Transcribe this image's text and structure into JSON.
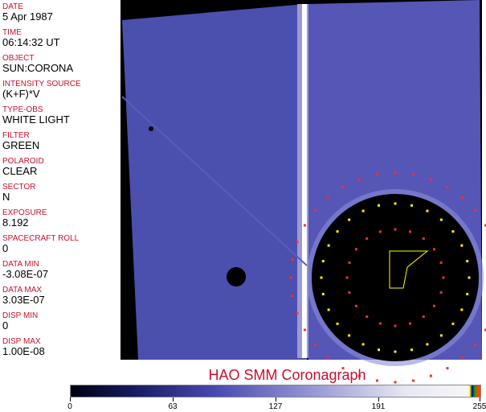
{
  "fields": [
    {
      "label": "DATE",
      "value": "5 Apr 1987"
    },
    {
      "label": "TIME",
      "value": "06:14:32 UT"
    },
    {
      "label": "OBJECT",
      "value": "SUN:CORONA"
    },
    {
      "label": "INTENSITY SOURCE",
      "value": "(K+F)*V"
    },
    {
      "label": "TYPE-OBS",
      "value": "WHITE LIGHT"
    },
    {
      "label": "FILTER",
      "value": "GREEN"
    },
    {
      "label": "POLAROID",
      "value": "CLEAR"
    },
    {
      "label": "SECTOR",
      "value": "N"
    },
    {
      "label": "EXPOSURE",
      "value": "8.192"
    },
    {
      "label": "SPACECRAFT ROLL",
      "value": "0"
    },
    {
      "label": "DATA MIN",
      "value": "-3.08E-07"
    },
    {
      "label": "DATA MAX",
      "value": "3.03E-07"
    },
    {
      "label": "DISP MIN",
      "value": "0"
    },
    {
      "label": "DISP MAX",
      "value": "1.00E-08"
    }
  ],
  "title": "HAO  SMM Coronagraph",
  "colorbar": {
    "ticks": [
      "0",
      "63",
      "127",
      "191",
      "255"
    ],
    "colors": [
      "#000010",
      "#4848b0",
      "#f6f6f6",
      "#ffff00",
      "#0000aa",
      "#00aa00",
      "#ff4400"
    ]
  },
  "colors": {
    "label": "#c8102e",
    "image_bg": "#4a4ab0"
  }
}
